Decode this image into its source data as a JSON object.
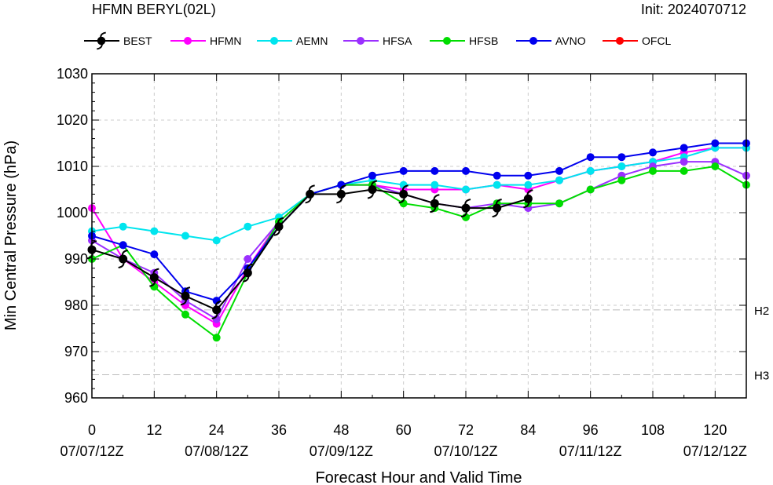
{
  "header": {
    "title": "HFMN BERYL(02L)",
    "init": "Init: 2024070712"
  },
  "chart_data": {
    "type": "line",
    "xlabel": "Forecast Hour and Valid Time",
    "ylabel": "Min Central Pressure (hPa)",
    "xlim": [
      0,
      126
    ],
    "ylim": [
      960,
      1030
    ],
    "x_ticks": [
      0,
      12,
      24,
      36,
      48,
      60,
      72,
      84,
      96,
      108,
      120
    ],
    "x_tick_labels": [
      "0",
      "12",
      "24",
      "36",
      "48",
      "60",
      "72",
      "84",
      "96",
      "108",
      "120"
    ],
    "date_labels": [
      {
        "x": 0,
        "label": "07/07/12Z"
      },
      {
        "x": 24,
        "label": "07/08/12Z"
      },
      {
        "x": 48,
        "label": "07/09/12Z"
      },
      {
        "x": 72,
        "label": "07/10/12Z"
      },
      {
        "x": 96,
        "label": "07/11/12Z"
      },
      {
        "x": 120,
        "label": "07/12/12Z"
      }
    ],
    "y_ticks": [
      960,
      970,
      980,
      990,
      1000,
      1010,
      1020,
      1030
    ],
    "grid": true,
    "legend_position": "top",
    "reference_lines": [
      {
        "y": 979,
        "label": "H2"
      },
      {
        "y": 965,
        "label": "H3"
      }
    ],
    "series": [
      {
        "name": "HFMN",
        "color": "#ff00ff",
        "x": [
          0,
          6,
          12,
          18,
          24,
          30,
          36,
          42,
          48,
          54,
          60,
          66,
          72,
          78,
          84,
          90,
          96,
          102,
          108,
          114,
          120,
          126
        ],
        "y": [
          1001,
          990,
          985,
          980,
          976,
          988,
          998,
          1004,
          1006,
          1006,
          1005,
          1005,
          1005,
          1006,
          1005,
          1007,
          1009,
          1010,
          1011,
          1013,
          1014,
          1014
        ]
      },
      {
        "name": "AEMN",
        "color": "#00e5ee",
        "x": [
          0,
          6,
          12,
          18,
          24,
          30,
          36,
          42,
          48,
          54,
          60,
          66,
          72,
          78,
          84,
          90,
          96,
          102,
          108,
          114,
          120,
          126
        ],
        "y": [
          996,
          997,
          996,
          995,
          994,
          997,
          999,
          1004,
          1006,
          1007,
          1006,
          1006,
          1005,
          1006,
          1006,
          1007,
          1009,
          1010,
          1011,
          1012,
          1014,
          1014
        ]
      },
      {
        "name": "HFSA",
        "color": "#9b30ff",
        "x": [
          0,
          6,
          12,
          18,
          24,
          30,
          36,
          42,
          48,
          54,
          60,
          66,
          72,
          78,
          84,
          90,
          96,
          102,
          108,
          114,
          120,
          126
        ],
        "y": [
          994,
          990,
          987,
          981,
          977,
          990,
          998,
          1004,
          1006,
          1006,
          1004,
          1002,
          1001,
          1002,
          1001,
          1002,
          1005,
          1008,
          1010,
          1011,
          1011,
          1008
        ]
      },
      {
        "name": "HFSB",
        "color": "#00dd00",
        "x": [
          0,
          6,
          12,
          18,
          24,
          30,
          36,
          42,
          48,
          54,
          60,
          66,
          72,
          78,
          84,
          90,
          96,
          102,
          108,
          114,
          120,
          126
        ],
        "y": [
          990,
          993,
          984,
          978,
          973,
          987,
          998,
          1004,
          1006,
          1006,
          1002,
          1001,
          999,
          1002,
          1002,
          1002,
          1005,
          1007,
          1009,
          1009,
          1010,
          1006
        ]
      },
      {
        "name": "AVNO",
        "color": "#0000ee",
        "x": [
          0,
          6,
          12,
          18,
          24,
          30,
          36,
          42,
          48,
          54,
          60,
          66,
          72,
          78,
          84,
          90,
          96,
          102,
          108,
          114,
          120,
          126
        ],
        "y": [
          995,
          993,
          991,
          983,
          981,
          988,
          997,
          1004,
          1006,
          1008,
          1009,
          1009,
          1009,
          1008,
          1008,
          1009,
          1012,
          1012,
          1013,
          1014,
          1015,
          1015
        ]
      },
      {
        "name": "OFCL",
        "color": "#ff0000",
        "x": [],
        "y": []
      },
      {
        "name": "BEST",
        "color": "#000000",
        "x": [
          0,
          6,
          12,
          18,
          24,
          30,
          36,
          42,
          48,
          54,
          60,
          66,
          72,
          78,
          84
        ],
        "y": [
          992,
          990,
          986,
          982,
          979,
          987,
          997,
          1004,
          1004,
          1005,
          1004,
          1002,
          1001,
          1001,
          1003
        ]
      }
    ]
  }
}
